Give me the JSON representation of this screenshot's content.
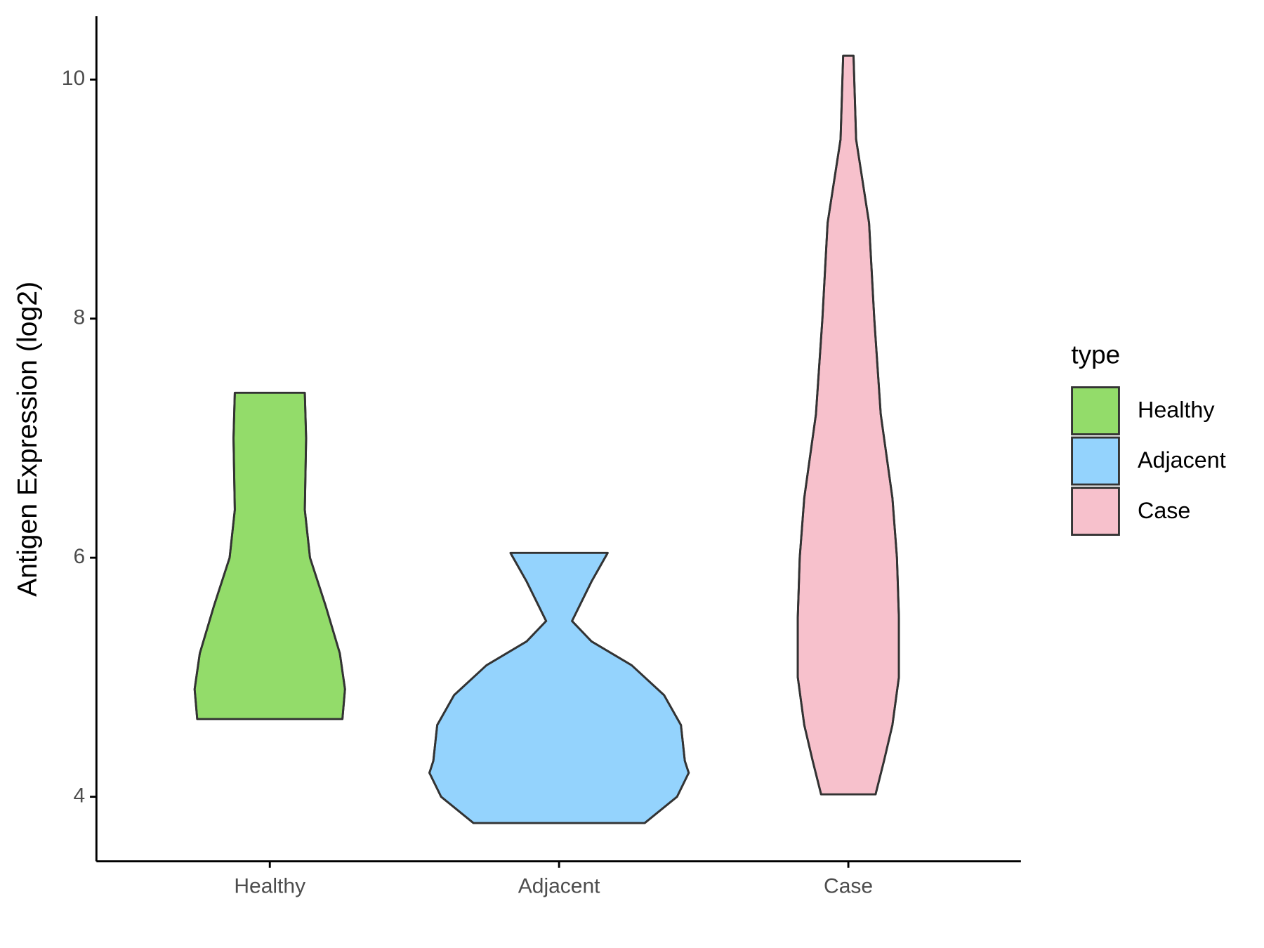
{
  "chart_data": {
    "type": "violin",
    "y_label": "Antigen Expression (log2)",
    "categories": [
      "Healthy",
      "Adjacent",
      "Case"
    ],
    "legend_title": "type",
    "legend_position": "right",
    "ylim": [
      3.46,
      10.53
    ],
    "yticks": [
      4,
      6,
      8,
      10
    ],
    "series": [
      {
        "name": "Healthy",
        "color": "#93dc6a",
        "y": [
          7.38,
          7.0,
          6.4,
          6.0,
          5.6,
          5.2,
          4.9,
          4.65
        ],
        "density": [
          0.27,
          0.28,
          0.27,
          0.31,
          0.43,
          0.54,
          0.58,
          0.56
        ]
      },
      {
        "name": "Adjacent",
        "color": "#94d3fd",
        "y": [
          6.04,
          5.8,
          5.47,
          5.3,
          5.1,
          4.85,
          4.6,
          4.3,
          4.2,
          4.0,
          3.78
        ],
        "density": [
          0.375,
          0.25,
          0.1,
          0.25,
          0.56,
          0.81,
          0.94,
          0.97,
          1.0,
          0.91,
          0.66
        ]
      },
      {
        "name": "Case",
        "color": "#f7c1cc",
        "y": [
          10.2,
          9.5,
          8.8,
          8.0,
          7.2,
          6.5,
          6.0,
          5.5,
          5.0,
          4.6,
          4.3,
          4.02
        ],
        "density": [
          0.04,
          0.06,
          0.16,
          0.2,
          0.25,
          0.34,
          0.375,
          0.39,
          0.39,
          0.34,
          0.275,
          0.21
        ]
      }
    ]
  }
}
